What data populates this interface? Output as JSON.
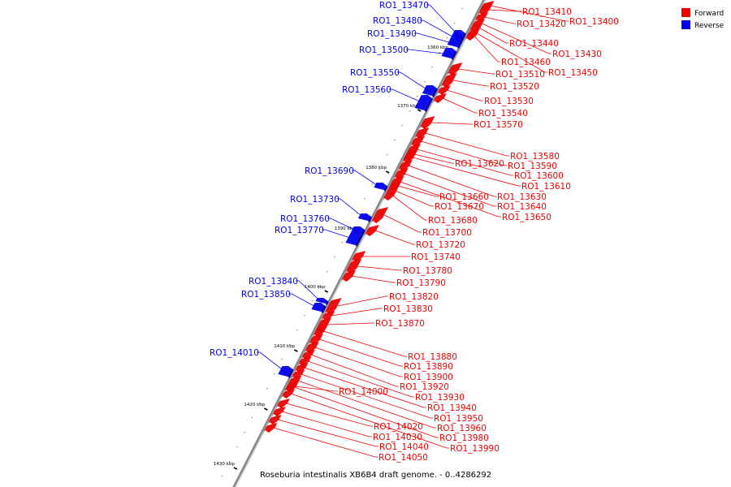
{
  "caption": "Roseburia intestinalis XB6B4 draft genome. - 0..4286292",
  "colors": {
    "forward": "#ee0000",
    "reverse": "#0000ee",
    "axis": "#888888"
  },
  "legend": [
    {
      "label": "Forward",
      "color": "#ee0000"
    },
    {
      "label": "Reverse",
      "color": "#0000ee"
    }
  ],
  "ticks": [
    "1360 kbp",
    "1370 kbp",
    "1380 kbp",
    "1390 kbp",
    "1400 kbp",
    "1410 kbp",
    "1420 kbp",
    "1430 kbp"
  ],
  "forward_genes": [
    "RO1_13400",
    "RO1_13410",
    "RO1_13420",
    "RO1_13430",
    "RO1_13440",
    "RO1_13450",
    "RO1_13460",
    "RO1_13510",
    "RO1_13520",
    "RO1_13530",
    "RO1_13540",
    "RO1_13570",
    "RO1_13580",
    "RO1_13590",
    "RO1_13600",
    "RO1_13610",
    "RO1_13620",
    "RO1_13630",
    "RO1_13640",
    "RO1_13650",
    "RO1_13660",
    "RO1_13670",
    "RO1_13680",
    "RO1_13700",
    "RO1_13720",
    "RO1_13740",
    "RO1_13780",
    "RO1_13790",
    "RO1_13820",
    "RO1_13830",
    "RO1_13870",
    "RO1_13880",
    "RO1_13890",
    "RO1_13900",
    "RO1_13920",
    "RO1_13930",
    "RO1_13940",
    "RO1_13950",
    "RO1_13960",
    "RO1_13980",
    "RO1_13990",
    "RO1_14000",
    "RO1_14020",
    "RO1_14030",
    "RO1_14040",
    "RO1_14050"
  ],
  "reverse_genes": [
    "RO1_13470",
    "RO1_13480",
    "RO1_13490",
    "RO1_13500",
    "RO1_13550",
    "RO1_13560",
    "RO1_13690",
    "RO1_13730",
    "RO1_13760",
    "RO1_13770",
    "RO1_13840",
    "RO1_13850",
    "RO1_14010"
  ]
}
